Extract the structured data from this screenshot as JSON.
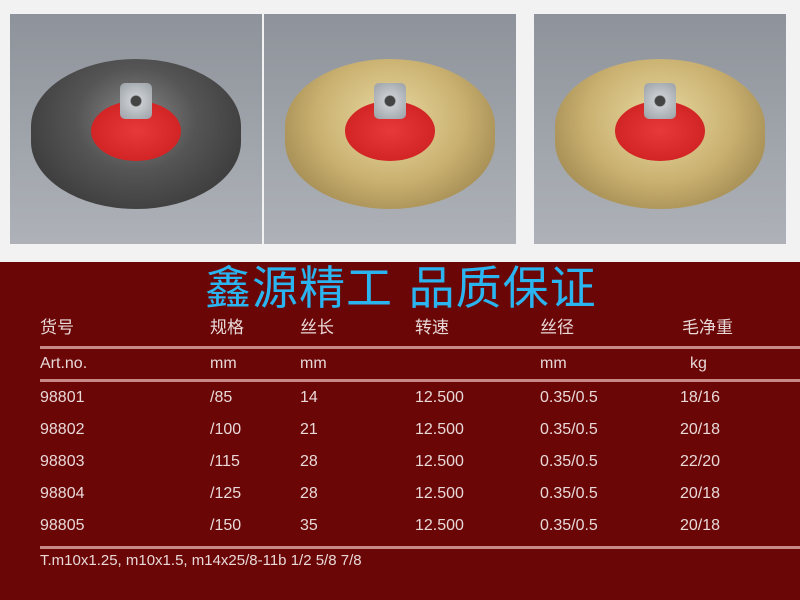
{
  "photos": [
    {
      "name": "steel-wire-brush"
    },
    {
      "name": "brass-wire-brush"
    },
    {
      "name": "brass-wire-brush-2"
    }
  ],
  "watermark": "鑫源精工 品质保证",
  "table": {
    "headers": [
      "货号",
      "规格",
      "丝长",
      "转速",
      "丝径",
      "毛净重"
    ],
    "units": [
      "Art.no.",
      "mm",
      "mm",
      "",
      "mm",
      "kg"
    ],
    "rows": [
      [
        "98801",
        "/85",
        "14",
        "12.500",
        "0.35/0.5",
        "18/16"
      ],
      [
        "98802",
        "/100",
        "21",
        "12.500",
        "0.35/0.5",
        "20/18"
      ],
      [
        "98803",
        "/115",
        "28",
        "12.500",
        "0.35/0.5",
        "22/20"
      ],
      [
        "98804",
        "/125",
        "28",
        "12.500",
        "0.35/0.5",
        "20/18"
      ],
      [
        "98805",
        "/150",
        "35",
        "12.500",
        "0.35/0.5",
        "20/18"
      ]
    ]
  },
  "note": "T.m10x1.25, m10x1.5, m14x25/8-11b 1/2 5/8 7/8",
  "colors": {
    "background": "#6a0606",
    "watermark": "#2ab4f0"
  }
}
